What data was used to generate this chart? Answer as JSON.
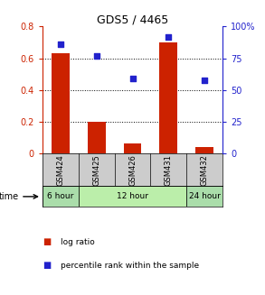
{
  "title": "GDS5 / 4465",
  "samples": [
    "GSM424",
    "GSM425",
    "GSM426",
    "GSM431",
    "GSM432"
  ],
  "log_ratio": [
    0.63,
    0.2,
    0.065,
    0.7,
    0.045
  ],
  "percentile_rank_pct": [
    86,
    77,
    59,
    92,
    58
  ],
  "bar_color": "#cc2200",
  "dot_color": "#2222cc",
  "left_ylim": [
    0,
    0.8
  ],
  "right_ylim": [
    0,
    100
  ],
  "left_yticks": [
    0,
    0.2,
    0.4,
    0.6,
    0.8
  ],
  "right_yticks": [
    0,
    25,
    50,
    75,
    100
  ],
  "left_yticklabels": [
    "0",
    "0.2",
    "0.4",
    "0.6",
    "0.8"
  ],
  "right_yticklabels": [
    "0",
    "25",
    "50",
    "75",
    "100%"
  ],
  "dotted_lines": [
    0.2,
    0.4,
    0.6
  ],
  "time_info": [
    [
      0,
      1,
      "6 hour",
      "#aaddaa"
    ],
    [
      1,
      4,
      "12 hour",
      "#bbeeaa"
    ],
    [
      4,
      5,
      "24 hour",
      "#aaddaa"
    ]
  ],
  "sample_bg_color": "#cccccc",
  "legend_log_ratio": "log ratio",
  "legend_percentile": "percentile rank within the sample",
  "xlabel_time": "time"
}
